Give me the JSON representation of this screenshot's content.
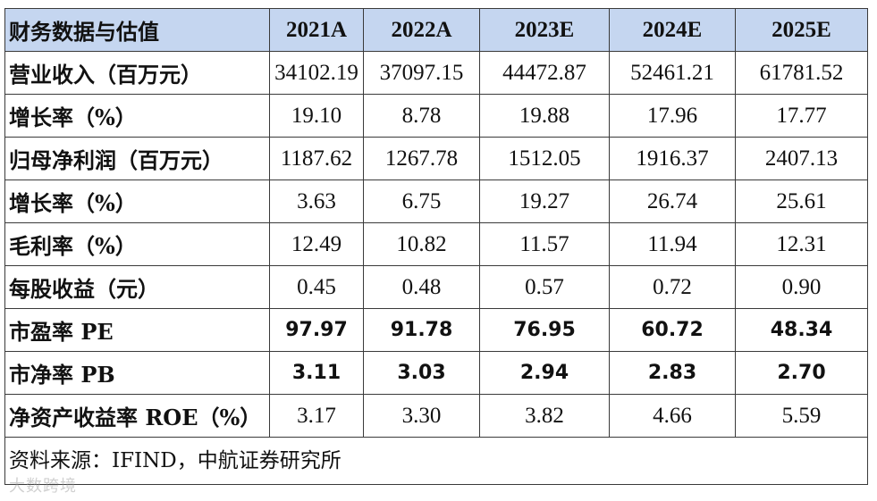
{
  "table": {
    "header": {
      "label": "财务数据与估值",
      "years": [
        "2021A",
        "2022A",
        "2023E",
        "2024E",
        "2025E"
      ]
    },
    "rows": [
      {
        "label": "营业收入（百万元）",
        "values": [
          "34102.19",
          "37097.15",
          "44472.87",
          "52461.21",
          "61781.52"
        ]
      },
      {
        "label": "增长率（%）",
        "values": [
          "19.10",
          "8.78",
          "19.88",
          "17.96",
          "17.77"
        ]
      },
      {
        "label": "归母净利润（百万元）",
        "values": [
          "1187.62",
          "1267.78",
          "1512.05",
          "1916.37",
          "2407.13"
        ]
      },
      {
        "label": "增长率（%）",
        "values": [
          "3.63",
          "6.75",
          "19.27",
          "26.74",
          "25.61"
        ]
      },
      {
        "label": "毛利率（%）",
        "values": [
          "12.49",
          "10.82",
          "11.57",
          "11.94",
          "12.31"
        ]
      },
      {
        "label": "每股收益（元）",
        "values": [
          "0.45",
          "0.48",
          "0.57",
          "0.72",
          "0.90"
        ]
      },
      {
        "label": "市盈率 PE",
        "values": [
          "97.97",
          "91.78",
          "76.95",
          "60.72",
          "48.34"
        ]
      },
      {
        "label": "市净率 PB",
        "values": [
          "3.11",
          "3.03",
          "2.94",
          "2.83",
          "2.70"
        ]
      },
      {
        "label": "净资产收益率 ROE（%）",
        "values": [
          "3.17",
          "3.30",
          "3.82",
          "4.66",
          "5.59"
        ]
      }
    ],
    "source": "资料来源：IFIND，中航证券研究所"
  },
  "watermark": "大数跨境",
  "colors": {
    "header_bg": "#c5d6f0",
    "border": "#3a3a3a"
  }
}
